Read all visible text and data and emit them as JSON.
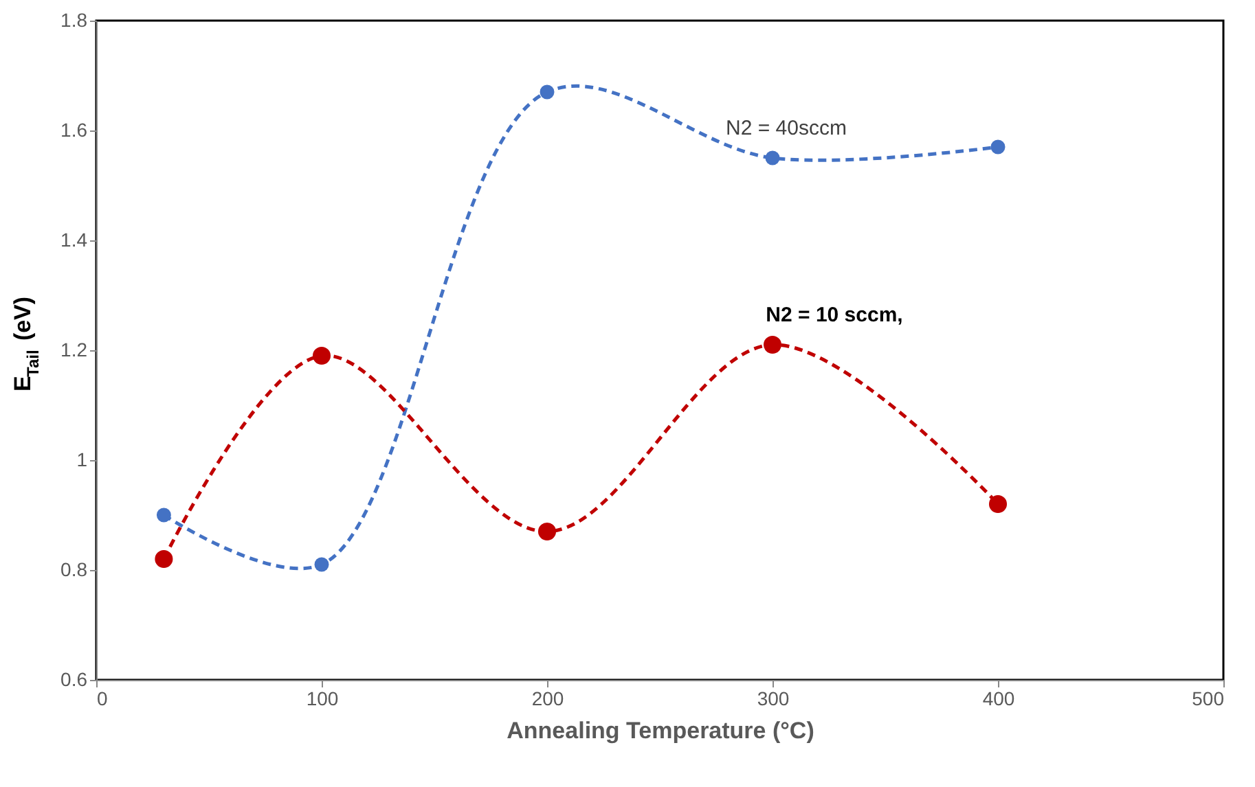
{
  "chart_data": {
    "type": "line",
    "xlabel": "Annealing Temperature (°C)",
    "ylabel": "E$_{Tail}$ (eV)",
    "x": [
      30,
      100,
      200,
      300,
      400
    ],
    "series": [
      {
        "name": "N2 = 40sccm",
        "color": "#4472c4",
        "values": [
          0.9,
          0.81,
          1.67,
          1.55,
          1.57
        ]
      },
      {
        "name": "N2 = 10 sccm,",
        "color": "#c00000",
        "values": [
          0.82,
          1.19,
          0.87,
          1.21,
          0.92
        ]
      }
    ],
    "xlim": [
      0,
      500
    ],
    "xticks": [
      0,
      100,
      200,
      300,
      400,
      500
    ],
    "ylim": [
      0.6,
      1.8
    ],
    "yticks": [
      0.6,
      0.8,
      1,
      1.2,
      1.4,
      1.6,
      1.8
    ],
    "grid": false,
    "marker": "circle",
    "line_style": "dashed"
  }
}
